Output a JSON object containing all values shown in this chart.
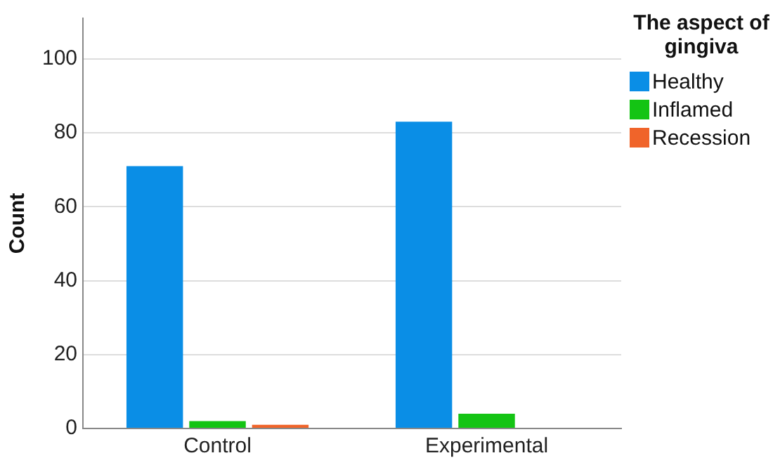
{
  "chart_data": {
    "type": "bar",
    "ylabel": "Count",
    "legend_title": "The aspect of gingiva",
    "categories": [
      "Control",
      "Experimental"
    ],
    "series": [
      {
        "name": "Healthy",
        "color": "#0a8ee6",
        "values": [
          71,
          83
        ]
      },
      {
        "name": "Inflamed",
        "color": "#14c414",
        "values": [
          2,
          4
        ]
      },
      {
        "name": "Recession",
        "color": "#f0642a",
        "values": [
          1,
          0
        ]
      }
    ],
    "ylim": [
      0,
      111
    ],
    "yticks": [
      0,
      20,
      40,
      60,
      80,
      100
    ],
    "grid": "y",
    "legend": "right"
  }
}
